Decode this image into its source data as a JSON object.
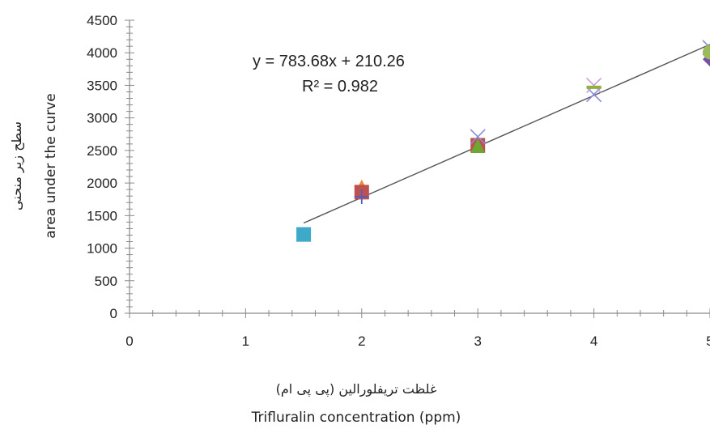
{
  "chart_data": {
    "type": "scatter",
    "xlabel": "Trifluralin concentration (ppm)",
    "xlabel_fa": "غلظت تریفلورالین (پی پی ام)",
    "ylabel": "area under the curve",
    "ylabel_fa": "سطح زیر منحنی",
    "xlim": [
      0,
      5
    ],
    "ylim": [
      0,
      4500
    ],
    "x_ticks": [
      "0",
      "1",
      "2",
      "3",
      "4",
      "5"
    ],
    "y_ticks": [
      "0",
      "500",
      "1000",
      "1500",
      "2000",
      "2500",
      "3000",
      "3500",
      "4000",
      "4500"
    ],
    "grid": false,
    "legend": "none",
    "series": [
      {
        "marker": "square",
        "color": "#3fa9c9",
        "x": [
          1.5
        ],
        "y": [
          1210
        ]
      },
      {
        "marker": "triangle",
        "color": "#f08a2c",
        "x": [
          2
        ],
        "y": [
          1930
        ]
      },
      {
        "marker": "square",
        "color": "#c0504d",
        "x": [
          2,
          3
        ],
        "y": [
          1860,
          2580
        ]
      },
      {
        "marker": "cross",
        "color": "#4a60c8",
        "x": [
          2
        ],
        "y": [
          1790
        ]
      },
      {
        "marker": "triangle",
        "color": "#6ea634",
        "x": [
          3
        ],
        "y": [
          2560
        ]
      },
      {
        "marker": "x",
        "color": "#8a8adc",
        "x": [
          3,
          4,
          5
        ],
        "y": [
          2710,
          3360,
          4080
        ]
      },
      {
        "marker": "x",
        "color": "#d19ad6",
        "x": [
          4
        ],
        "y": [
          3500
        ]
      },
      {
        "marker": "dash",
        "color": "#8db33a",
        "x": [
          4
        ],
        "y": [
          3470
        ]
      },
      {
        "marker": "diamond",
        "color": "#7a4fa3",
        "x": [
          5
        ],
        "y": [
          3900
        ]
      },
      {
        "marker": "circle",
        "color": "#9bbb59",
        "x": [
          5
        ],
        "y": [
          4010
        ]
      }
    ],
    "trendline": {
      "slope": 783.68,
      "intercept": 210.26,
      "x_range": [
        1.5,
        5
      ],
      "equation": "y = 783.68x + 210.26",
      "r2": "R² = 0.982"
    }
  }
}
